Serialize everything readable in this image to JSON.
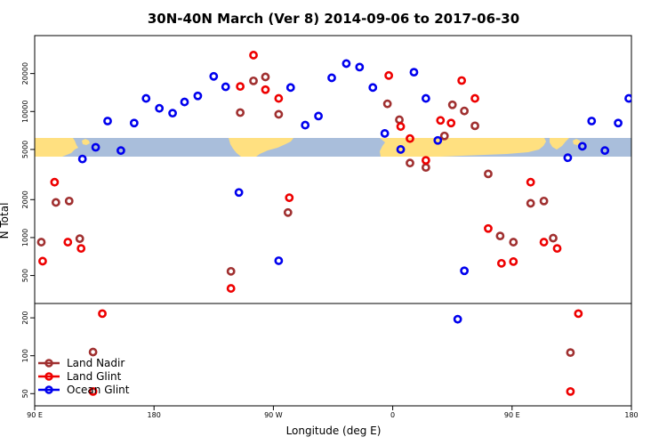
{
  "chart_data": {
    "type": "scatter",
    "title": "30N-40N March (Ver 8)   2014-09-06 to 2017-06-30",
    "xlabel": "Longitude (deg E)",
    "ylabel": "N Total",
    "x_ticks": [
      {
        "value": 90,
        "label": "90 E"
      },
      {
        "value": 180,
        "label": "180"
      },
      {
        "value": 270,
        "label": "90 W"
      },
      {
        "value": 360,
        "label": "0"
      },
      {
        "value": 450,
        "label": "90 E"
      },
      {
        "value": 540,
        "label": "180"
      }
    ],
    "xlim": [
      90,
      540
    ],
    "y_scale": "log",
    "upper_panel": {
      "ylim": [
        300,
        40000
      ],
      "y_ticks": [
        {
          "value": 500,
          "label": "500"
        },
        {
          "value": 1000,
          "label": "1000"
        },
        {
          "value": 2000,
          "label": "2000"
        },
        {
          "value": 5000,
          "label": "5000"
        },
        {
          "value": 10000,
          "label": "10000"
        },
        {
          "value": 20000,
          "label": "20000"
        }
      ]
    },
    "lower_panel": {
      "ylim": [
        40,
        260
      ],
      "y_ticks": [
        {
          "value": 50,
          "label": "50"
        },
        {
          "value": 100,
          "label": "100"
        },
        {
          "value": 200,
          "label": "200"
        }
      ]
    },
    "map_band": {
      "land_color": "#ffe080",
      "ocean_color": "#a9bedb"
    },
    "series": [
      {
        "name": "Land Nadir",
        "color": "#a03030",
        "points": [
          {
            "x": 95,
            "y": 920
          },
          {
            "x": 106,
            "y": 1900
          },
          {
            "x": 116,
            "y": 1950
          },
          {
            "x": 124,
            "y": 980
          },
          {
            "x": 134,
            "y": 107
          },
          {
            "x": 238,
            "y": 540
          },
          {
            "x": 245,
            "y": 9800
          },
          {
            "x": 255,
            "y": 17500
          },
          {
            "x": 264,
            "y": 18800
          },
          {
            "x": 274,
            "y": 9500
          },
          {
            "x": 281,
            "y": 1580
          },
          {
            "x": 356,
            "y": 11500
          },
          {
            "x": 365,
            "y": 8600
          },
          {
            "x": 373,
            "y": 3900
          },
          {
            "x": 385,
            "y": 3600
          },
          {
            "x": 399,
            "y": 6400
          },
          {
            "x": 405,
            "y": 11300
          },
          {
            "x": 414,
            "y": 10100
          },
          {
            "x": 422,
            "y": 7700
          },
          {
            "x": 432,
            "y": 3200
          },
          {
            "x": 441,
            "y": 1030
          },
          {
            "x": 451,
            "y": 920
          },
          {
            "x": 464,
            "y": 1870
          },
          {
            "x": 474,
            "y": 1950
          },
          {
            "x": 481,
            "y": 990
          },
          {
            "x": 494,
            "y": 106
          }
        ]
      },
      {
        "name": "Land Glint",
        "color": "#ee0000",
        "points": [
          {
            "x": 96,
            "y": 650
          },
          {
            "x": 105,
            "y": 2750
          },
          {
            "x": 115,
            "y": 920
          },
          {
            "x": 125,
            "y": 820
          },
          {
            "x": 134,
            "y": 52
          },
          {
            "x": 141,
            "y": 216
          },
          {
            "x": 238,
            "y": 395
          },
          {
            "x": 245,
            "y": 15800
          },
          {
            "x": 255,
            "y": 28000
          },
          {
            "x": 264,
            "y": 14900
          },
          {
            "x": 274,
            "y": 12700
          },
          {
            "x": 282,
            "y": 2070
          },
          {
            "x": 357,
            "y": 19300
          },
          {
            "x": 366,
            "y": 7600
          },
          {
            "x": 373,
            "y": 6100
          },
          {
            "x": 385,
            "y": 4100
          },
          {
            "x": 396,
            "y": 8500
          },
          {
            "x": 404,
            "y": 8100
          },
          {
            "x": 412,
            "y": 17600
          },
          {
            "x": 422,
            "y": 12700
          },
          {
            "x": 432,
            "y": 1180
          },
          {
            "x": 442,
            "y": 625
          },
          {
            "x": 451,
            "y": 645
          },
          {
            "x": 464,
            "y": 2750
          },
          {
            "x": 474,
            "y": 920
          },
          {
            "x": 484,
            "y": 820
          },
          {
            "x": 494,
            "y": 52
          },
          {
            "x": 500,
            "y": 216
          }
        ]
      },
      {
        "name": "Ocean Glint",
        "color": "#0000ee",
        "points": [
          {
            "x": 126,
            "y": 4200
          },
          {
            "x": 136,
            "y": 5200
          },
          {
            "x": 145,
            "y": 8400
          },
          {
            "x": 155,
            "y": 4900
          },
          {
            "x": 165,
            "y": 8100
          },
          {
            "x": 174,
            "y": 12700
          },
          {
            "x": 184,
            "y": 10600
          },
          {
            "x": 194,
            "y": 9700
          },
          {
            "x": 203,
            "y": 11900
          },
          {
            "x": 213,
            "y": 13300
          },
          {
            "x": 225,
            "y": 19000
          },
          {
            "x": 234,
            "y": 15700
          },
          {
            "x": 244,
            "y": 2280
          },
          {
            "x": 274,
            "y": 655
          },
          {
            "x": 283,
            "y": 15500
          },
          {
            "x": 294,
            "y": 7800
          },
          {
            "x": 304,
            "y": 9200
          },
          {
            "x": 314,
            "y": 18500
          },
          {
            "x": 325,
            "y": 24000
          },
          {
            "x": 335,
            "y": 22500
          },
          {
            "x": 345,
            "y": 15500
          },
          {
            "x": 354,
            "y": 6700
          },
          {
            "x": 366,
            "y": 5000
          },
          {
            "x": 376,
            "y": 20500
          },
          {
            "x": 385,
            "y": 12700
          },
          {
            "x": 394,
            "y": 5900
          },
          {
            "x": 409,
            "y": 195
          },
          {
            "x": 414,
            "y": 545
          },
          {
            "x": 492,
            "y": 4300
          },
          {
            "x": 503,
            "y": 5300
          },
          {
            "x": 510,
            "y": 8400
          },
          {
            "x": 520,
            "y": 4900
          },
          {
            "x": 530,
            "y": 8100
          },
          {
            "x": 538,
            "y": 12700
          }
        ]
      }
    ],
    "legend": {
      "position": "bottom-left",
      "entries": [
        "Land Nadir",
        "Land Glint",
        "Ocean Glint"
      ]
    }
  }
}
